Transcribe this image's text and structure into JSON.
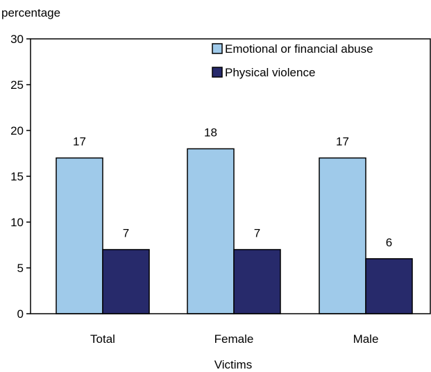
{
  "chart_data": {
    "type": "bar",
    "categories": [
      "Total",
      "Female",
      "Male"
    ],
    "series": [
      {
        "name": "Emotional or financial abuse",
        "values": [
          17,
          18,
          17
        ],
        "color": "#9fcaea"
      },
      {
        "name": "Physical violence",
        "values": [
          7,
          7,
          6
        ],
        "color": "#272a6b"
      }
    ],
    "title": "",
    "xlabel": "Victims",
    "ylabel": "percentage",
    "ylim": [
      0,
      30
    ],
    "yticks": [
      0,
      5,
      10,
      15,
      20,
      25,
      30
    ],
    "grid": false,
    "legend_position": "top-right",
    "data_labels": true
  }
}
